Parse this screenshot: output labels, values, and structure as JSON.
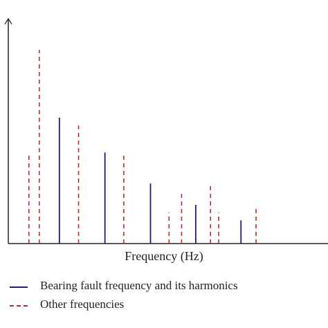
{
  "chart_data": {
    "type": "bar",
    "title": "",
    "xlabel": "Frequency (Hz)",
    "ylabel": "",
    "grid": false,
    "legend_position": "bottom-left",
    "xlim": [
      0,
      100
    ],
    "ylim": [
      0,
      100
    ],
    "series": [
      {
        "name": "Bearing fault frequency and its harmonics",
        "style": "solid",
        "color": "#1c1c7a",
        "x": [
          14.5,
          29.0,
          43.5,
          57.9,
          72.3
        ],
        "values": [
          65,
          47,
          31,
          20,
          12
        ]
      },
      {
        "name": "Other frequencies",
        "style": "dashed",
        "color": "#c0292b",
        "x": [
          4.8,
          8.1,
          20.6,
          35.0,
          49.4,
          53.4,
          62.6,
          65.2,
          77.1
        ],
        "values": [
          47,
          100,
          61,
          47,
          16,
          27,
          30,
          16,
          18
        ]
      }
    ]
  }
}
